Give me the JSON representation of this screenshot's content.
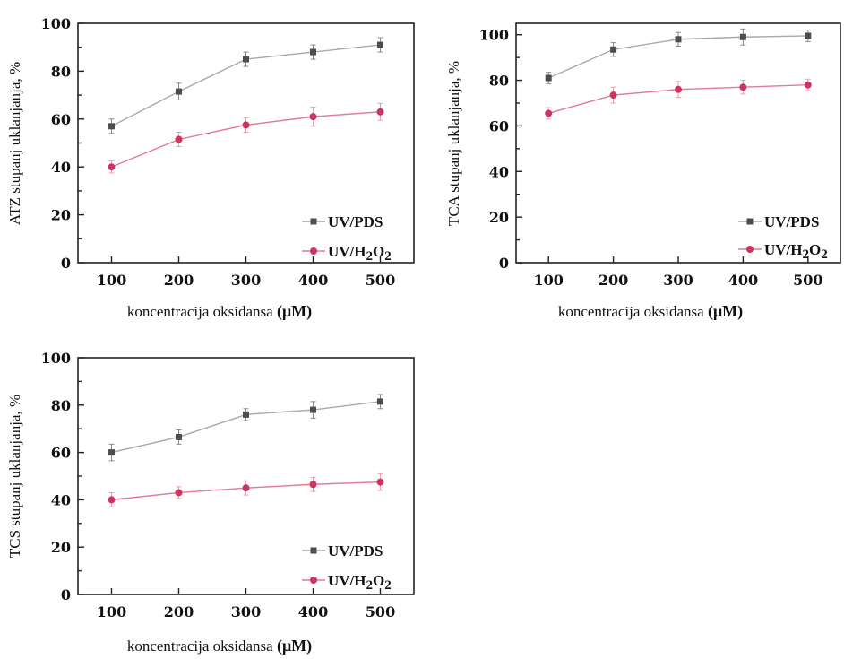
{
  "legend": {
    "pds": "UV/PDS",
    "h2o2_prefix": "UV/H",
    "h2o2_sub1": "2",
    "h2o2_mid": "O",
    "h2o2_sub2": "2"
  },
  "colors": {
    "pds": "#4d4d4d",
    "pds_line": "#a9a9a9",
    "h2o2": "#d0335f",
    "h2o2_line": "#e27a96"
  },
  "chart_data": [
    {
      "id": "atz",
      "type": "line",
      "xlabel": "koncentracija oksidansa",
      "xunit": "(μM)",
      "ylabel": "ATZ stupanj uklanjanja, %",
      "x": [
        100,
        200,
        300,
        400,
        500
      ],
      "xlim": [
        50,
        550
      ],
      "ylim": [
        0,
        100
      ],
      "yticks": [
        0,
        20,
        40,
        60,
        80,
        100
      ],
      "legend_position": "bottom-right",
      "series": [
        {
          "name": "UV/PDS",
          "values": [
            57,
            71.5,
            85,
            88,
            91
          ],
          "errors": [
            3,
            3.5,
            3,
            3,
            3
          ]
        },
        {
          "name": "UV/H2O2",
          "values": [
            40,
            51.5,
            57.5,
            61,
            63
          ],
          "errors": [
            2.5,
            3,
            3,
            4,
            3.5
          ]
        }
      ]
    },
    {
      "id": "tca",
      "type": "line",
      "xlabel": "koncentracija oksidansa",
      "xunit": "(μM)",
      "ylabel": "TCA stupanj uklanjanja, %",
      "x": [
        100,
        200,
        300,
        400,
        500
      ],
      "xlim": [
        50,
        550
      ],
      "ylim": [
        0,
        105
      ],
      "yticks": [
        0,
        20,
        40,
        60,
        80,
        100
      ],
      "legend_position": "bottom-right",
      "series": [
        {
          "name": "UV/PDS",
          "values": [
            81,
            93.5,
            98,
            99,
            99.5
          ],
          "errors": [
            2.5,
            3,
            3,
            3.5,
            2.5
          ]
        },
        {
          "name": "UV/H2O2",
          "values": [
            65.5,
            73.5,
            76,
            77,
            78
          ],
          "errors": [
            2.5,
            3.5,
            3.5,
            3,
            2.5
          ]
        }
      ]
    },
    {
      "id": "tcs",
      "type": "line",
      "xlabel": "koncentracija oksidansa",
      "xunit": "(μM)",
      "ylabel": "TCS stupanj uklanjanja, %",
      "x": [
        100,
        200,
        300,
        400,
        500
      ],
      "xlim": [
        50,
        550
      ],
      "ylim": [
        0,
        100
      ],
      "yticks": [
        0,
        20,
        40,
        60,
        80,
        100
      ],
      "legend_position": "bottom-right",
      "series": [
        {
          "name": "UV/PDS",
          "values": [
            60,
            66.5,
            76,
            78,
            81.5
          ],
          "errors": [
            3.5,
            3,
            2.5,
            3.5,
            3
          ]
        },
        {
          "name": "UV/H2O2",
          "values": [
            40,
            43,
            45,
            46.5,
            47.5
          ],
          "errors": [
            3,
            2.5,
            3,
            3,
            3.5
          ]
        }
      ]
    }
  ]
}
